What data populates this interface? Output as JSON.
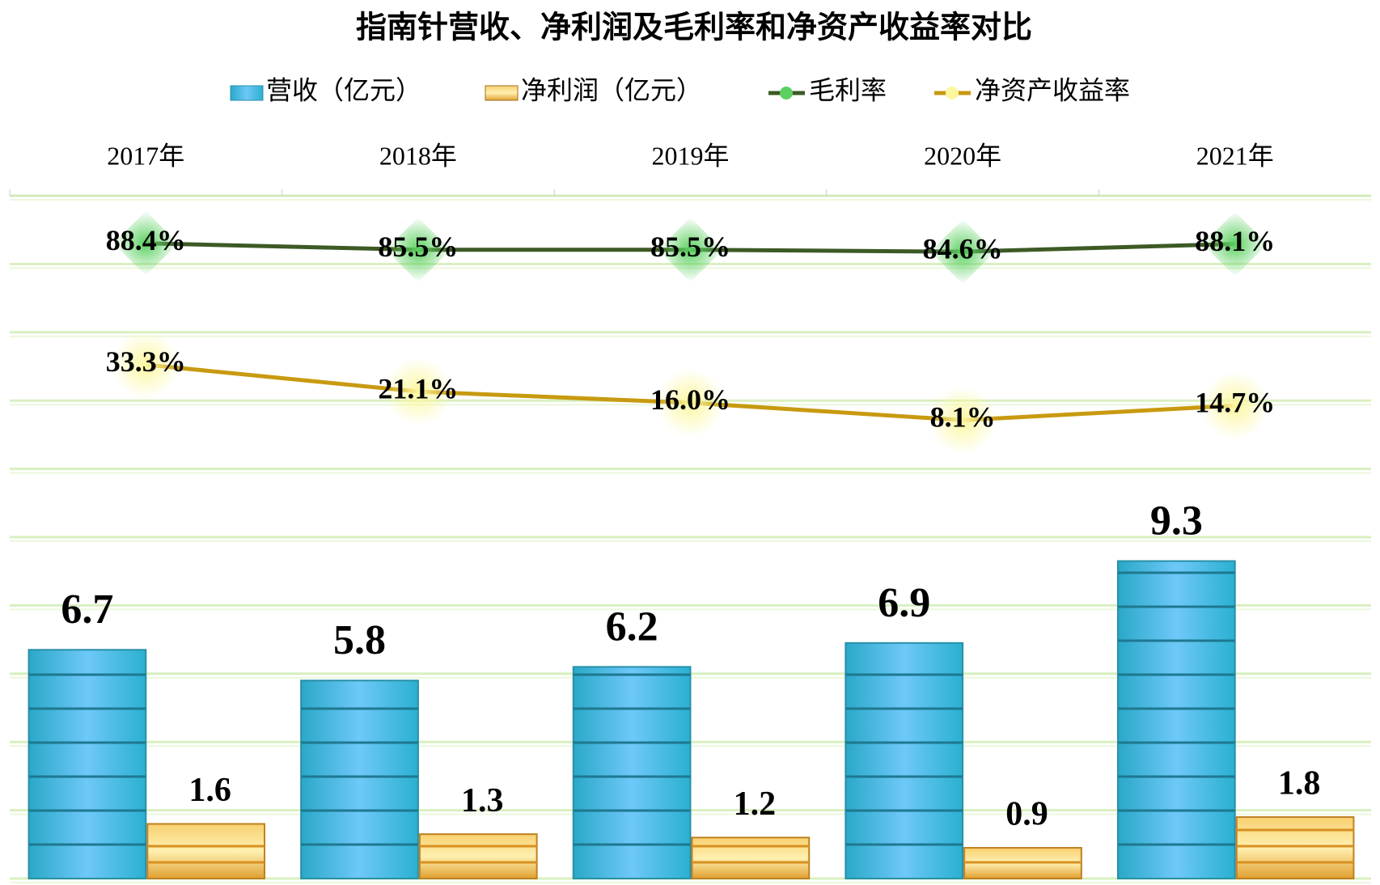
{
  "chart_data": {
    "type": "bar-line",
    "title": "指南针营收、净利润及毛利率和净资产收益率对比",
    "categories": [
      "2017年",
      "2018年",
      "2019年",
      "2020年",
      "2021年"
    ],
    "series": [
      {
        "name": "营收（亿元）",
        "type": "bar",
        "color": "#3cc8e8",
        "values": [
          6.7,
          5.8,
          6.2,
          6.9,
          9.3
        ]
      },
      {
        "name": "净利润（亿元）",
        "type": "bar",
        "color": "#f0b040",
        "values": [
          1.6,
          1.3,
          1.2,
          0.9,
          1.8
        ]
      },
      {
        "name": "毛利率",
        "type": "line",
        "axis": "y2",
        "color": "#3d5a25",
        "marker_color": "#5cd060",
        "values": [
          88.4,
          85.5,
          85.5,
          84.6,
          88.1
        ],
        "value_labels": [
          "88.4%",
          "85.5%",
          "85.5%",
          "84.6%",
          "88.1%"
        ]
      },
      {
        "name": "净资产收益率",
        "type": "line",
        "axis": "y2",
        "color": "#c89a10",
        "marker_color": "#fbf7a0",
        "values": [
          33.3,
          21.1,
          16.0,
          8.1,
          14.7
        ],
        "value_labels": [
          "33.3%",
          "21.1%",
          "16.0%",
          "8.1%",
          "14.7%"
        ]
      }
    ],
    "ylim": [
      0,
      20
    ],
    "yticks": [
      0,
      2,
      4,
      6,
      8,
      10,
      12,
      14,
      16,
      18,
      20
    ],
    "y2lim": [
      -200,
      110
    ],
    "grid": true
  }
}
